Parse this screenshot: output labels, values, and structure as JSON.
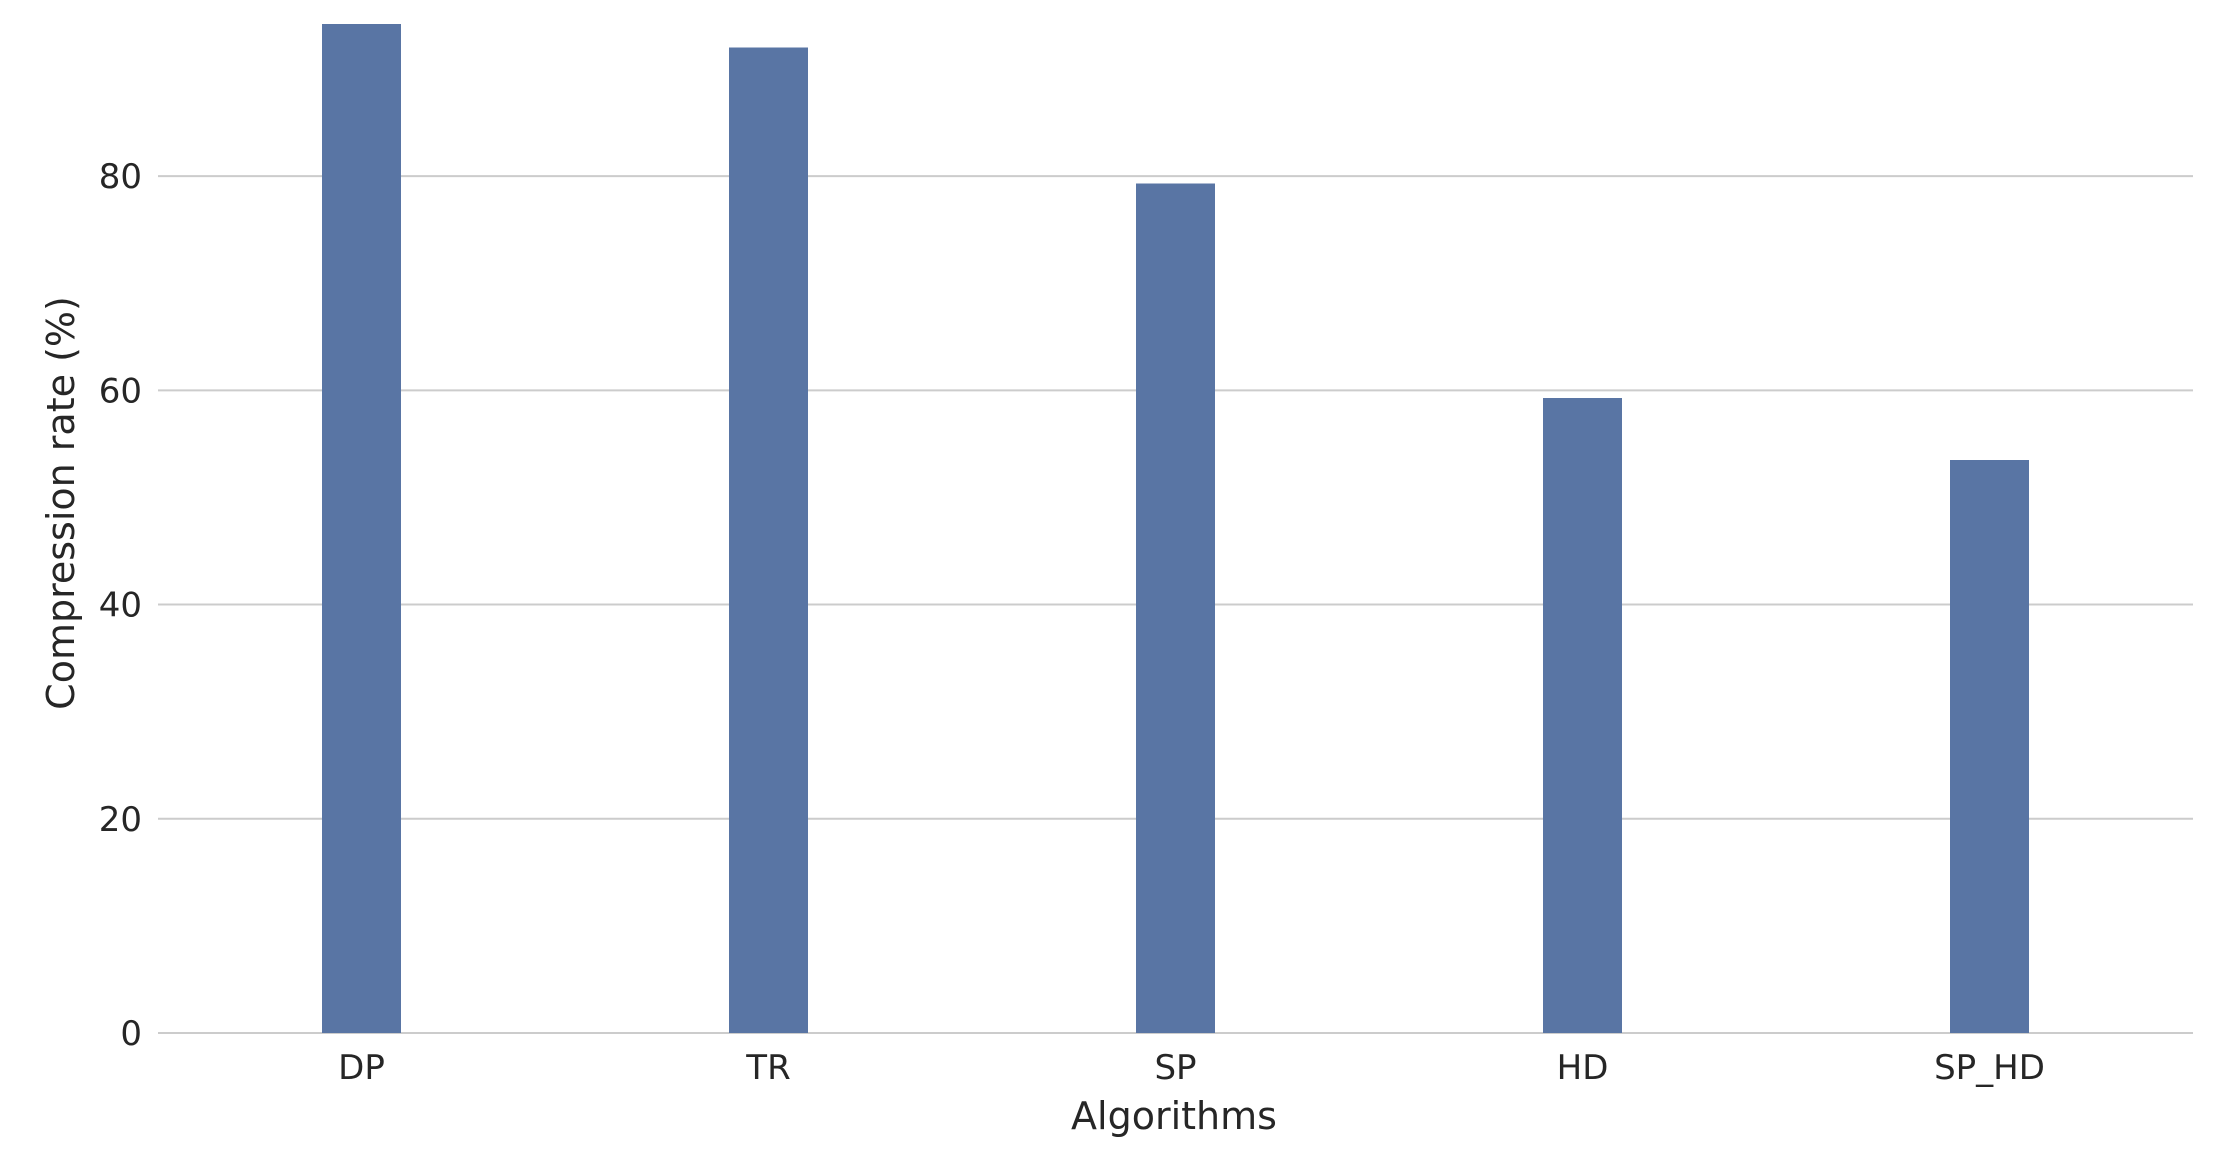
{
  "chart_data": {
    "type": "bar",
    "title": "",
    "xlabel": "Algorithms",
    "ylabel": "Compression rate (%)",
    "categories": [
      "DP",
      "TR",
      "SP",
      "HD",
      "SP_HD"
    ],
    "values": [
      94.2,
      92.0,
      79.3,
      59.3,
      53.5
    ],
    "ylim": [
      0,
      94.2
    ],
    "yticks": [
      0,
      20,
      40,
      60,
      80
    ],
    "ytick_labels": [
      "0",
      "20",
      "40",
      "60",
      "80"
    ],
    "grid": true,
    "legend": "none",
    "colors": {
      "bar": "#5975a4",
      "grid": "#cccccc",
      "text": "#262626"
    }
  }
}
